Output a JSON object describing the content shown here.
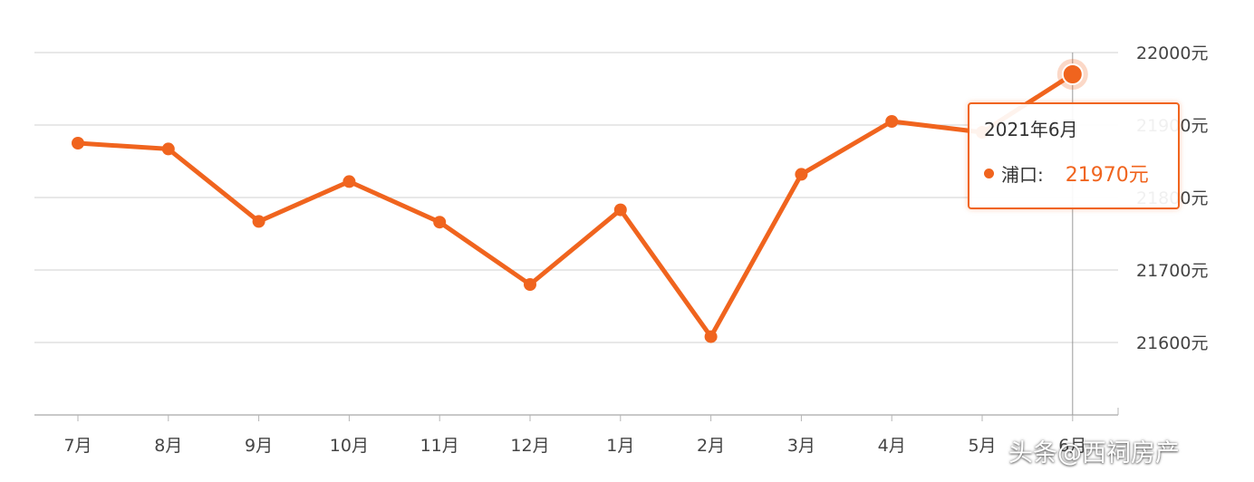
{
  "chart_data": {
    "type": "line",
    "categories": [
      "7月",
      "8月",
      "9月",
      "10月",
      "11月",
      "12月",
      "1月",
      "2月",
      "3月",
      "4月",
      "5月",
      "6月"
    ],
    "series": [
      {
        "name": "浦口",
        "values": [
          21875,
          21867,
          21767,
          21822,
          21766,
          21680,
          21783,
          21608,
          21832,
          21905,
          21890,
          21970
        ]
      }
    ],
    "y_ticks": [
      "22000元",
      "21900元",
      "21800元",
      "21700元",
      "21600元"
    ],
    "y_tick_values": [
      22000,
      21900,
      21800,
      21700,
      21600
    ],
    "ylim": [
      21500,
      22000
    ],
    "y_axis_side": "right",
    "grid": true,
    "color": "#f0641e",
    "highlight_index": 11
  },
  "tooltip": {
    "title": "2021年6月",
    "series_label": "浦口:",
    "value": "21970元"
  },
  "watermark": "头条@西祠房产"
}
